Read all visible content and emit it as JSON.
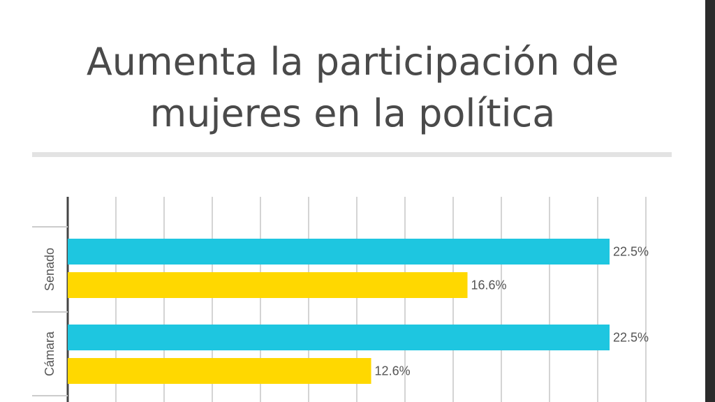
{
  "title": "Aumenta la participación de mujeres en la política",
  "chart_data": {
    "type": "bar",
    "orientation": "horizontal",
    "title": "Aumenta la participación de mujeres en la política",
    "categories": [
      "Senado",
      "Cámara"
    ],
    "series": [
      {
        "values": [
          22.5,
          22.5
        ],
        "labels": [
          "22.5%",
          "22.5%"
        ],
        "color": "#1ec6e0"
      },
      {
        "values": [
          16.6,
          12.6
        ],
        "labels": [
          "16.6%",
          "12.6%"
        ],
        "color": "#ffd800"
      }
    ],
    "value_unit": "%",
    "xlim": [
      0,
      24
    ],
    "grid": true,
    "legend": "none"
  },
  "colors": {
    "title": "#4a4a4a",
    "grid": "#d4d4d4",
    "axis": "#444444",
    "label": "#555555"
  }
}
